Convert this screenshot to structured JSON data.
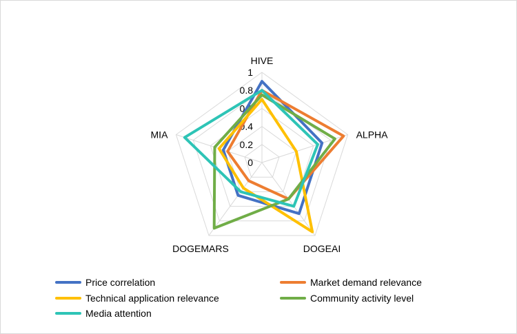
{
  "chart_data": {
    "type": "radar",
    "categories": [
      "HIVE",
      "ALPHA",
      "DOGEAI",
      "DOGEMARS",
      "MIA"
    ],
    "rlim": [
      0,
      1
    ],
    "ticks": [
      "0",
      "0.2",
      "0.4",
      "0.6",
      "0.8",
      "1"
    ],
    "series": [
      {
        "name": "Price correlation",
        "color": "#4472C4",
        "values": [
          0.9,
          0.7,
          0.7,
          0.45,
          0.45
        ]
      },
      {
        "name": "Market demand relevance",
        "color": "#ED7D31",
        "values": [
          0.8,
          0.95,
          0.5,
          0.25,
          0.4
        ]
      },
      {
        "name": "Technical application relevance",
        "color": "#FFC000",
        "values": [
          0.7,
          0.4,
          0.95,
          0.35,
          0.5
        ]
      },
      {
        "name": "Community activity level",
        "color": "#70AD47",
        "values": [
          0.75,
          0.85,
          0.5,
          0.9,
          0.55
        ]
      },
      {
        "name": "Media attention",
        "color": "#2EC4B6",
        "values": [
          0.8,
          0.65,
          0.6,
          0.4,
          0.9
        ]
      }
    ],
    "grid": true,
    "legend_position": "bottom"
  }
}
